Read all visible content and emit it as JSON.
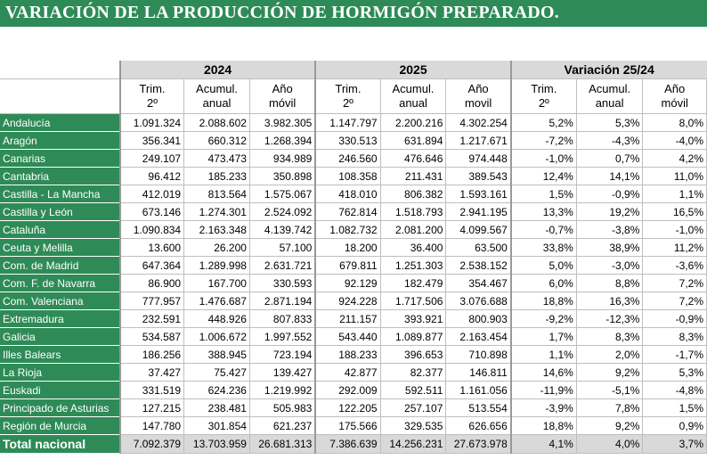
{
  "title": "VARIACIÓN DE LA PRODUCCIÓN DE HORMIGÓN PREPARADO.",
  "groups": [
    "2024",
    "2025",
    "Variación 25/24"
  ],
  "subheaders": [
    [
      "Trim.",
      "2º"
    ],
    [
      "Acumul.",
      "anual"
    ],
    [
      "Año",
      "móvil"
    ],
    [
      "Trim.",
      "2º"
    ],
    [
      "Acumul.",
      "anual"
    ],
    [
      "Año",
      "movil"
    ],
    [
      "Trim.",
      "2º"
    ],
    [
      "Acumul.",
      "anual"
    ],
    [
      "Año",
      "móvil"
    ]
  ],
  "rows": [
    {
      "region": "Andalucía",
      "values": [
        "1.091.324",
        "2.088.602",
        "3.982.305",
        "1.147.797",
        "2.200.216",
        "4.302.254",
        "5,2%",
        "5,3%",
        "8,0%"
      ]
    },
    {
      "region": "Aragón",
      "values": [
        "356.341",
        "660.312",
        "1.268.394",
        "330.513",
        "631.894",
        "1.217.671",
        "-7,2%",
        "-4,3%",
        "-4,0%"
      ]
    },
    {
      "region": "Canarias",
      "values": [
        "249.107",
        "473.473",
        "934.989",
        "246.560",
        "476.646",
        "974.448",
        "-1,0%",
        "0,7%",
        "4,2%"
      ]
    },
    {
      "region": "Cantabria",
      "values": [
        "96.412",
        "185.233",
        "350.898",
        "108.358",
        "211.431",
        "389.543",
        "12,4%",
        "14,1%",
        "11,0%"
      ]
    },
    {
      "region": "Castilla - La Mancha",
      "values": [
        "412.019",
        "813.564",
        "1.575.067",
        "418.010",
        "806.382",
        "1.593.161",
        "1,5%",
        "-0,9%",
        "1,1%"
      ]
    },
    {
      "region": "Castilla y León",
      "values": [
        "673.146",
        "1.274.301",
        "2.524.092",
        "762.814",
        "1.518.793",
        "2.941.195",
        "13,3%",
        "19,2%",
        "16,5%"
      ]
    },
    {
      "region": "Cataluña",
      "values": [
        "1.090.834",
        "2.163.348",
        "4.139.742",
        "1.082.732",
        "2.081.200",
        "4.099.567",
        "-0,7%",
        "-3,8%",
        "-1,0%"
      ]
    },
    {
      "region": "Ceuta y Melilla",
      "values": [
        "13.600",
        "26.200",
        "57.100",
        "18.200",
        "36.400",
        "63.500",
        "33,8%",
        "38,9%",
        "11,2%"
      ]
    },
    {
      "region": "Com. de Madrid",
      "values": [
        "647.364",
        "1.289.998",
        "2.631.721",
        "679.811",
        "1.251.303",
        "2.538.152",
        "5,0%",
        "-3,0%",
        "-3,6%"
      ]
    },
    {
      "region": "Com. F. de Navarra",
      "values": [
        "86.900",
        "167.700",
        "330.593",
        "92.129",
        "182.479",
        "354.467",
        "6,0%",
        "8,8%",
        "7,2%"
      ]
    },
    {
      "region": "Com. Valenciana",
      "values": [
        "777.957",
        "1.476.687",
        "2.871.194",
        "924.228",
        "1.717.506",
        "3.076.688",
        "18,8%",
        "16,3%",
        "7,2%"
      ]
    },
    {
      "region": "Extremadura",
      "values": [
        "232.591",
        "448.926",
        "807.833",
        "211.157",
        "393.921",
        "800.903",
        "-9,2%",
        "-12,3%",
        "-0,9%"
      ]
    },
    {
      "region": "Galicia",
      "values": [
        "534.587",
        "1.006.672",
        "1.997.552",
        "543.440",
        "1.089.877",
        "2.163.454",
        "1,7%",
        "8,3%",
        "8,3%"
      ]
    },
    {
      "region": "Illes Balears",
      "values": [
        "186.256",
        "388.945",
        "723.194",
        "188.233",
        "396.653",
        "710.898",
        "1,1%",
        "2,0%",
        "-1,7%"
      ]
    },
    {
      "region": "La Rioja",
      "values": [
        "37.427",
        "75.427",
        "139.427",
        "42.877",
        "82.377",
        "146.811",
        "14,6%",
        "9,2%",
        "5,3%"
      ]
    },
    {
      "region": "Euskadi",
      "values": [
        "331.519",
        "624.236",
        "1.219.992",
        "292.009",
        "592.511",
        "1.161.056",
        "-11,9%",
        "-5,1%",
        "-4,8%"
      ]
    },
    {
      "region": "Principado de Asturias",
      "values": [
        "127.215",
        "238.481",
        "505.983",
        "122.205",
        "257.107",
        "513.554",
        "-3,9%",
        "7,8%",
        "1,5%"
      ]
    },
    {
      "region": "Región de Murcia",
      "values": [
        "147.780",
        "301.854",
        "621.237",
        "175.566",
        "329.535",
        "626.656",
        "18,8%",
        "9,2%",
        "0,9%"
      ]
    }
  ],
  "total": {
    "region": "Total nacional",
    "values": [
      "7.092.379",
      "13.703.959",
      "26.681.313",
      "7.386.639",
      "14.256.231",
      "27.673.978",
      "4,1%",
      "4,0%",
      "3,7%"
    ]
  }
}
